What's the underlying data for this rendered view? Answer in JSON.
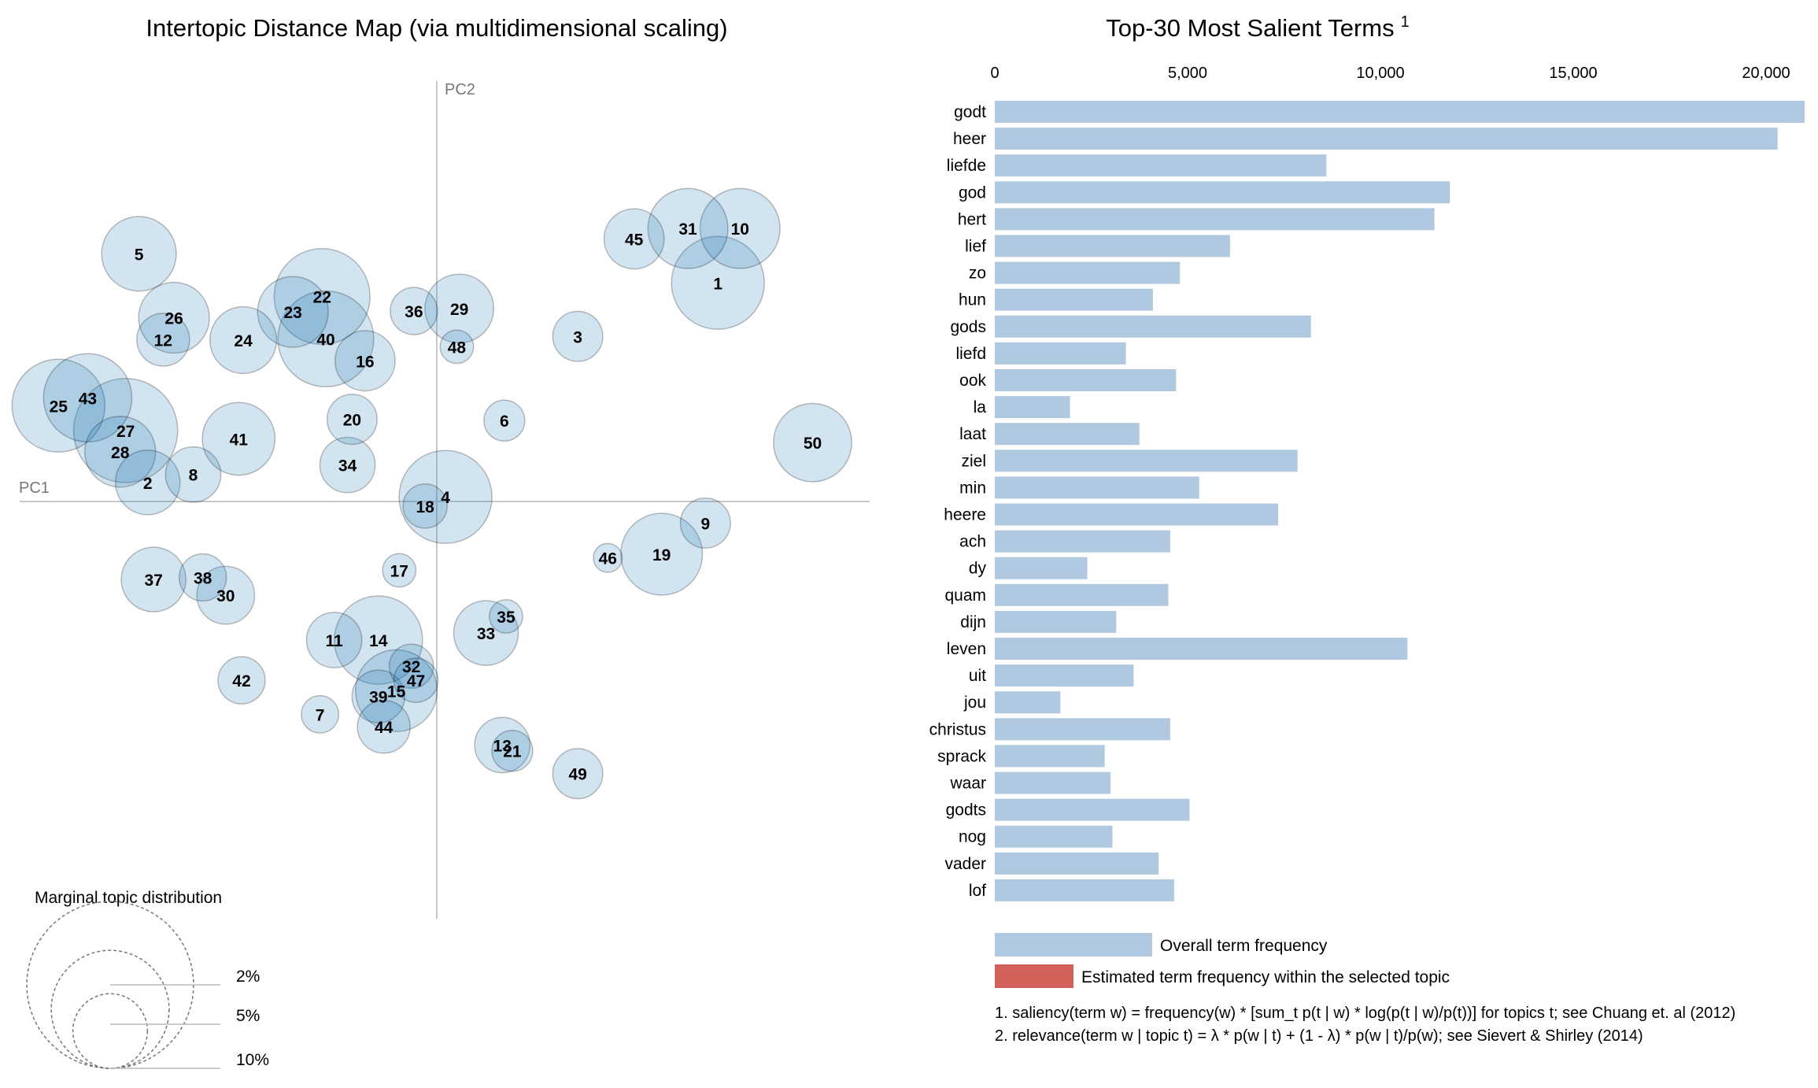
{
  "left_title": "Intertopic Distance Map (via multidimensional scaling)",
  "right_title": "Top-30 Most Salient Terms",
  "right_title_sup": "1",
  "colors": {
    "bar_overall": "#b0c9e0",
    "bar_topic": "#d4605a",
    "circle_fill": "#1f77b4",
    "axis": "#c8c8c8"
  },
  "chart_data": [
    {
      "type": "scatter",
      "title": "Intertopic Distance Map (via multidimensional scaling)",
      "xlabel": "PC1",
      "ylabel": "PC2",
      "xlim": [
        -1,
        1
      ],
      "ylim": [
        -1,
        1
      ],
      "size_unit": "marginal topic distribution (%)",
      "topics": [
        {
          "id": "1",
          "x": 0.674,
          "y": 0.527,
          "size": 3.1
        },
        {
          "id": "2",
          "x": -0.693,
          "y": 0.046,
          "size": 1.5
        },
        {
          "id": "3",
          "x": 0.338,
          "y": 0.398,
          "size": 0.9
        },
        {
          "id": "4",
          "x": 0.021,
          "y": 0.011,
          "size": 3.1
        },
        {
          "id": "5",
          "x": -0.714,
          "y": 0.597,
          "size": 2.0
        },
        {
          "id": "6",
          "x": 0.162,
          "y": 0.195,
          "size": 0.6
        },
        {
          "id": "7",
          "x": -0.28,
          "y": -0.513,
          "size": 0.5
        },
        {
          "id": "8",
          "x": -0.584,
          "y": 0.065,
          "size": 1.1
        },
        {
          "id": "9",
          "x": 0.644,
          "y": -0.052,
          "size": 0.9
        },
        {
          "id": "10",
          "x": 0.727,
          "y": 0.658,
          "size": 2.3
        },
        {
          "id": "11",
          "x": -0.246,
          "y": -0.334,
          "size": 1.1
        },
        {
          "id": "12",
          "x": -0.656,
          "y": 0.39,
          "size": 1.0
        },
        {
          "id": "13",
          "x": 0.157,
          "y": -0.587,
          "size": 1.1
        },
        {
          "id": "14",
          "x": -0.14,
          "y": -0.334,
          "size": 2.8
        },
        {
          "id": "15",
          "x": -0.097,
          "y": -0.456,
          "size": 2.4
        },
        {
          "id": "16",
          "x": -0.172,
          "y": 0.339,
          "size": 1.3
        },
        {
          "id": "17",
          "x": -0.09,
          "y": -0.166,
          "size": 0.4
        },
        {
          "id": "18",
          "x": -0.028,
          "y": -0.011,
          "size": 0.7
        },
        {
          "id": "19",
          "x": 0.539,
          "y": -0.127,
          "size": 2.4
        },
        {
          "id": "20",
          "x": -0.203,
          "y": 0.198,
          "size": 0.9
        },
        {
          "id": "21",
          "x": 0.181,
          "y": -0.601,
          "size": 0.6
        },
        {
          "id": "22",
          "x": -0.275,
          "y": 0.494,
          "size": 3.3
        },
        {
          "id": "23",
          "x": -0.345,
          "y": 0.457,
          "size": 1.8
        },
        {
          "id": "24",
          "x": -0.464,
          "y": 0.389,
          "size": 1.6
        },
        {
          "id": "25",
          "x": -0.907,
          "y": 0.231,
          "size": 3.1
        },
        {
          "id": "26",
          "x": -0.63,
          "y": 0.443,
          "size": 1.8
        },
        {
          "id": "27",
          "x": -0.746,
          "y": 0.171,
          "size": 3.9
        },
        {
          "id": "28",
          "x": -0.759,
          "y": 0.12,
          "size": 1.8
        },
        {
          "id": "29",
          "x": 0.054,
          "y": 0.465,
          "size": 1.7
        },
        {
          "id": "30",
          "x": -0.506,
          "y": -0.226,
          "size": 1.2
        },
        {
          "id": "31",
          "x": 0.602,
          "y": 0.658,
          "size": 2.3
        },
        {
          "id": "32",
          "x": -0.061,
          "y": -0.397,
          "size": 0.7
        },
        {
          "id": "33",
          "x": 0.118,
          "y": -0.317,
          "size": 1.5
        },
        {
          "id": "34",
          "x": -0.214,
          "y": 0.088,
          "size": 1.1
        },
        {
          "id": "35",
          "x": 0.166,
          "y": -0.277,
          "size": 0.4
        },
        {
          "id": "36",
          "x": -0.055,
          "y": 0.459,
          "size": 0.8
        },
        {
          "id": "37",
          "x": -0.679,
          "y": -0.188,
          "size": 1.5
        },
        {
          "id": "38",
          "x": -0.561,
          "y": -0.183,
          "size": 0.8
        },
        {
          "id": "39",
          "x": -0.14,
          "y": -0.47,
          "size": 1.0
        },
        {
          "id": "40",
          "x": -0.266,
          "y": 0.392,
          "size": 3.3
        },
        {
          "id": "41",
          "x": -0.475,
          "y": 0.151,
          "size": 1.9
        },
        {
          "id": "42",
          "x": -0.468,
          "y": -0.431,
          "size": 0.8
        },
        {
          "id": "43",
          "x": -0.837,
          "y": 0.25,
          "size": 2.8
        },
        {
          "id": "44",
          "x": -0.127,
          "y": -0.543,
          "size": 1.0
        },
        {
          "id": "45",
          "x": 0.473,
          "y": 0.633,
          "size": 1.3
        },
        {
          "id": "46",
          "x": 0.41,
          "y": -0.136,
          "size": 0.3
        },
        {
          "id": "47",
          "x": -0.05,
          "y": -0.431,
          "size": 0.7
        },
        {
          "id": "48",
          "x": 0.048,
          "y": 0.373,
          "size": 0.4
        },
        {
          "id": "49",
          "x": 0.338,
          "y": -0.656,
          "size": 0.9
        },
        {
          "id": "50",
          "x": 0.901,
          "y": 0.142,
          "size": 2.2
        }
      ],
      "legend": {
        "title": "Marginal topic distribution",
        "entries": [
          {
            "label": "2%",
            "value": 2
          },
          {
            "label": "5%",
            "value": 5
          },
          {
            "label": "10%",
            "value": 10
          }
        ]
      }
    },
    {
      "type": "bar",
      "orientation": "horizontal",
      "title": "Top-30 Most Salient Terms",
      "xlim": [
        0,
        21000
      ],
      "xticks": [
        0,
        5000,
        10000,
        15000,
        20000
      ],
      "xtick_labels": [
        "0",
        "5,000",
        "10,000",
        "15,000",
        "20,000"
      ],
      "categories": [
        "godt",
        "heer",
        "liefde",
        "god",
        "hert",
        "lief",
        "zo",
        "hun",
        "gods",
        "liefd",
        "ook",
        "la",
        "laat",
        "ziel",
        "min",
        "heere",
        "ach",
        "dy",
        "quam",
        "dijn",
        "leven",
        "uit",
        "jou",
        "christus",
        "sprack",
        "waar",
        "godts",
        "nog",
        "vader",
        "lof"
      ],
      "series": [
        {
          "name": "Overall term frequency",
          "values": [
            21000,
            20300,
            8600,
            11800,
            11400,
            6100,
            4800,
            4100,
            8200,
            3400,
            4700,
            1950,
            3750,
            7850,
            5300,
            7350,
            4550,
            2400,
            4500,
            3150,
            10700,
            3600,
            1700,
            4550,
            2850,
            3000,
            5050,
            3050,
            4250,
            4650
          ]
        }
      ],
      "legend": [
        {
          "label": "Overall term frequency",
          "color": "#b0c9e0"
        },
        {
          "label": "Estimated term frequency within the selected topic",
          "color": "#d4605a"
        }
      ],
      "notes": [
        "1. saliency(term w) = frequency(w) * [sum_t p(t | w) * log(p(t | w)/p(t))] for topics t; see Chuang et. al (2012)",
        "2. relevance(term w | topic t) = λ * p(w | t) + (1 - λ) * p(w | t)/p(w); see Sievert & Shirley (2014)"
      ]
    }
  ]
}
